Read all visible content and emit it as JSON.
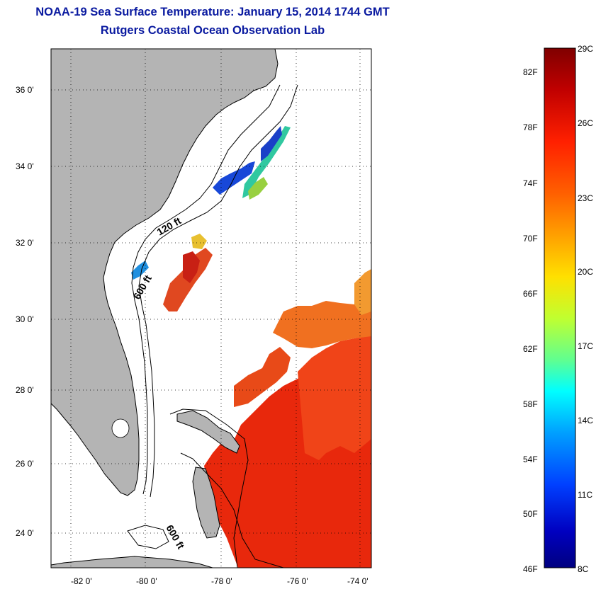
{
  "title": "NOAA-19 Sea Surface Temperature:  January 15, 2014 1744 GMT",
  "subtitle": "Rutgers Coastal Ocean Observation Lab",
  "map": {
    "lat_ticks": [
      "36 0'",
      "34 0'",
      "32 0'",
      "30 0'",
      "28 0'",
      "26 0'",
      "24 0'"
    ],
    "lon_ticks": [
      "-82 0'",
      "-80 0'",
      "-78 0'",
      "-76 0'",
      "-74 0'"
    ],
    "contour_labels": [
      "120 ft",
      "600 ft",
      "600 ft"
    ],
    "land_color": "#b4b4b4"
  },
  "colorbar": {
    "fahrenheit_labels": [
      "82F",
      "78F",
      "74F",
      "70F",
      "66F",
      "62F",
      "58F",
      "54F",
      "50F",
      "46F"
    ],
    "celsius_labels": [
      "29C",
      "26C",
      "23C",
      "20C",
      "17C",
      "14C",
      "11C",
      "8C"
    ],
    "colors": [
      "#800000",
      "#c00000",
      "#ff2000",
      "#ff6000",
      "#ffa000",
      "#ffe000",
      "#c0ff30",
      "#60ff90",
      "#00ffff",
      "#00a0ff",
      "#0040ff",
      "#0000c0",
      "#000080"
    ]
  }
}
